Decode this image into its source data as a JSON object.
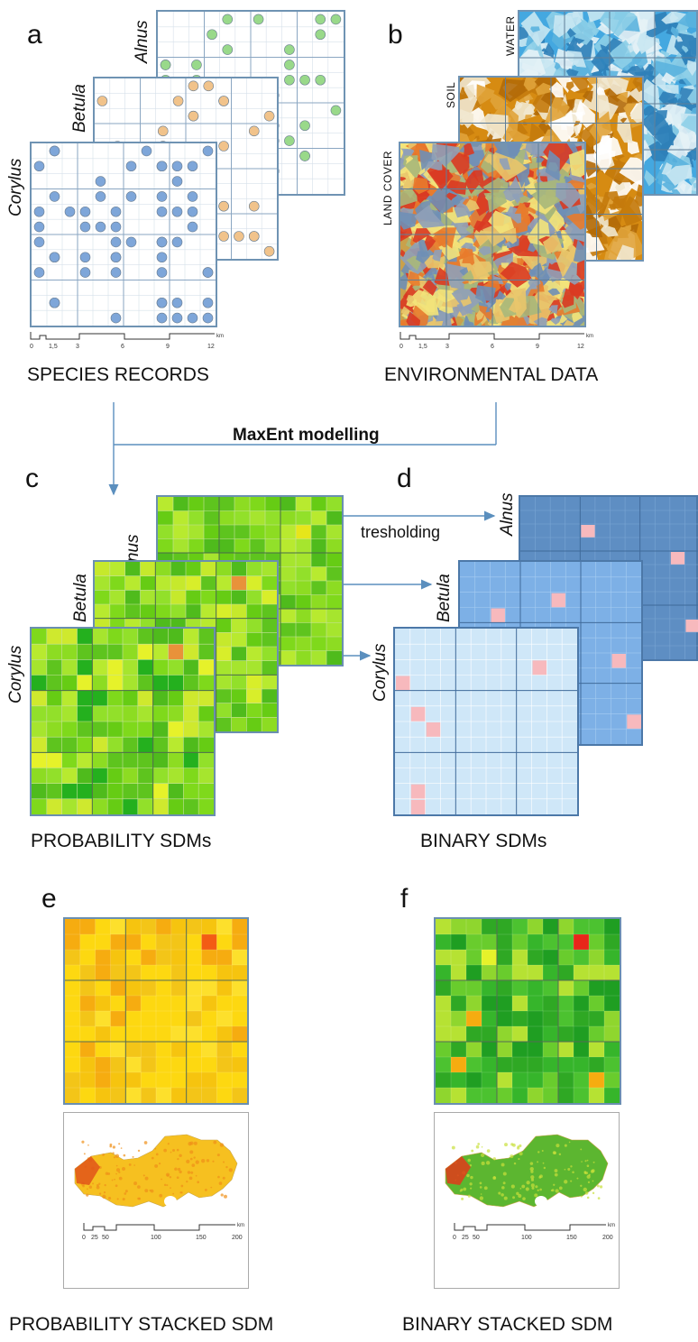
{
  "letters": {
    "a": "a",
    "b": "b",
    "c": "c",
    "d": "d",
    "e": "e",
    "f": "f"
  },
  "species": {
    "alnus": "Alnus",
    "betula": "Betula",
    "corylus": "Corylus"
  },
  "env_layers": {
    "water": "WATER",
    "soil": "SOIL",
    "land_cover": "LAND COVER"
  },
  "captions": {
    "species_records": "SPECIES RECORDS",
    "environmental_data": "ENVIRONMENTAL DATA",
    "probability_sdms": "PROBABILITY SDMs",
    "binary_sdms": "BINARY SDMs",
    "probability_stacked": "PROBABILITY STACKED SDM",
    "binary_stacked": "BINARY STACKED SDM"
  },
  "process_labels": {
    "maxent": "MaxEnt modelling",
    "thresholding": "tresholding"
  },
  "scale_small": {
    "ticks": [
      "0",
      "1,5",
      "3",
      "6",
      "9",
      "12"
    ],
    "unit": "km"
  },
  "scale_large": {
    "ticks": [
      "0",
      "25",
      "50",
      "100",
      "150",
      "200"
    ],
    "unit": "km"
  },
  "colors": {
    "frame": "#6f93b3",
    "arrow": "#5b8fbe",
    "corylus_dot": "#7ea6d9",
    "betula_dot": "#f1c38b",
    "alnus_dot": "#99d98a",
    "prob_green": "#7fd91b",
    "prob_yellow": "#e6f22a",
    "prob_orange": "#e8923a",
    "bin_dark": "#5e8ec3",
    "bin_mid": "#7db0e6",
    "bin_light": "#cfe7f8",
    "bin_presence": "#f7b9bd",
    "stack_yellow": "#fdd811",
    "stack_orange": "#f6ac10",
    "stack_red": "#f35c14",
    "stack_green": "#36b52b"
  }
}
